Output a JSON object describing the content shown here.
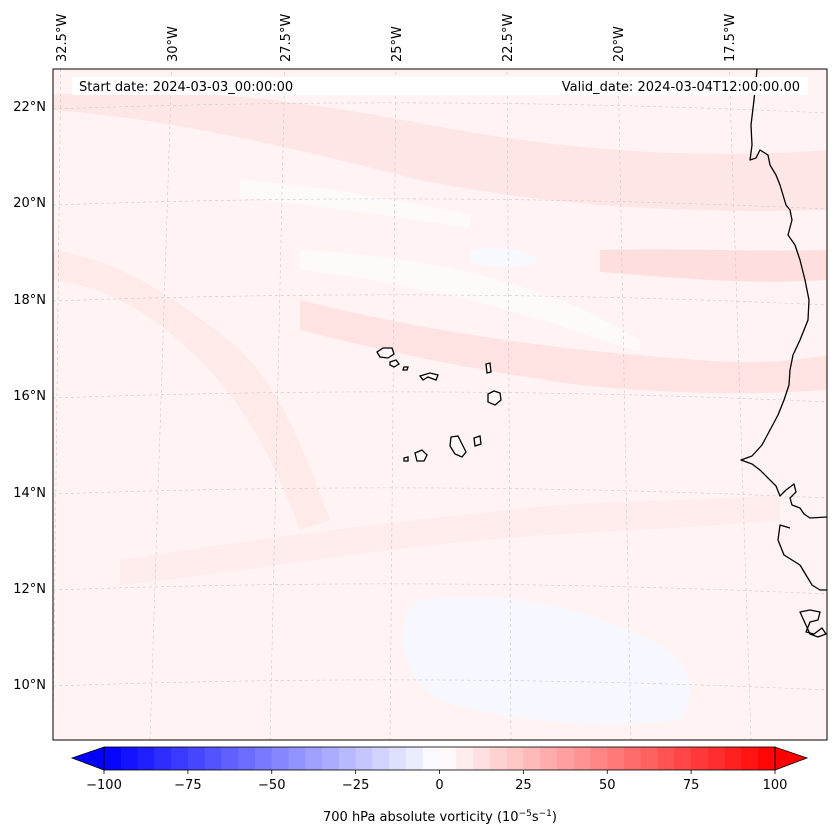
{
  "map": {
    "start_date_label": "Start date: 2024-03-03_00:00:00",
    "valid_date_label": "Valid_date: 2024-03-04T12:00:00.00",
    "lon_labels": [
      "32.5°W",
      "30°W",
      "27.5°W",
      "25°W",
      "22.5°W",
      "20°W",
      "17.5°W"
    ],
    "lat_labels": [
      "22°N",
      "20°N",
      "18°N",
      "16°N",
      "14°N",
      "12°N",
      "10°N"
    ],
    "features": [
      "Cabo Verde islands",
      "West African coastline"
    ]
  },
  "colorbar": {
    "label": "700 hPa absolute vorticity (10",
    "label_sup1": "−5",
    "label_mid": "s",
    "label_sup2": "−1",
    "label_end": ")",
    "ticks": [
      "−100",
      "−75",
      "−50",
      "−25",
      "0",
      "25",
      "50",
      "75",
      "100"
    ],
    "min": -100,
    "max": 100,
    "step": 5,
    "low_color": "#0000ff",
    "high_color": "#ff0000"
  }
}
